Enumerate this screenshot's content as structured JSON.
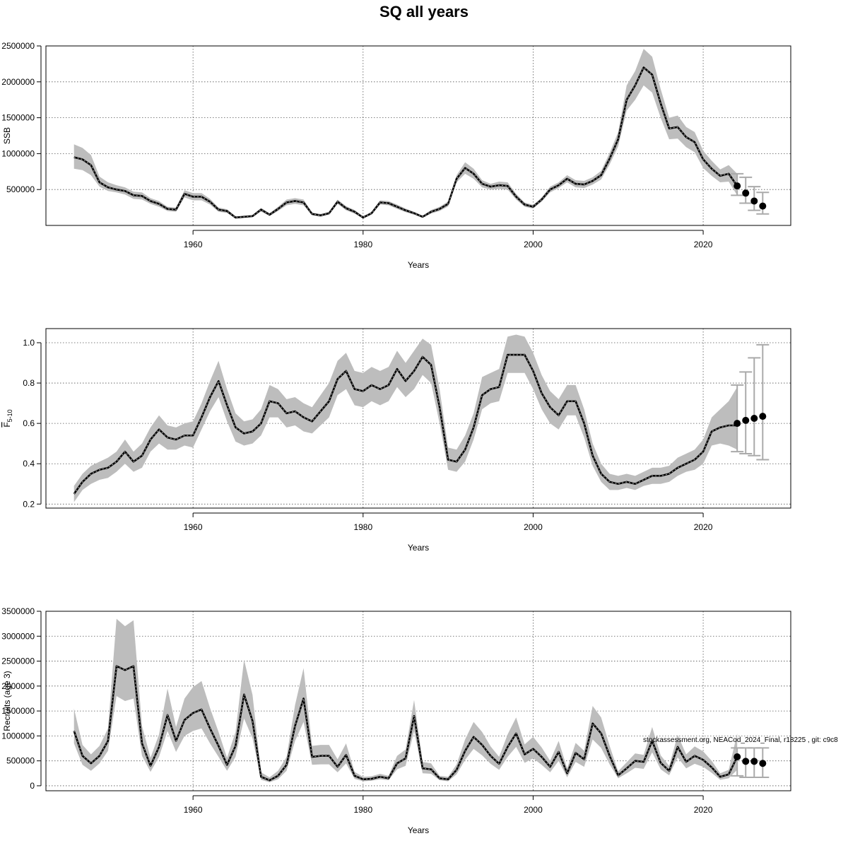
{
  "figure": {
    "title": "SQ all years",
    "footnote": "stockassessment.org, NEACod_2024_Final, r18225 , git: c9c8"
  },
  "chart_data": [
    {
      "type": "line",
      "id": "ssb",
      "xlabel": "Years",
      "ylabel": "SSB",
      "ylabel_sub": "",
      "xlim": [
        1942.7,
        2030.3
      ],
      "ylim": [
        0,
        2500000
      ],
      "xticks": [
        1960,
        1980,
        2000,
        2020
      ],
      "yticks": [
        500000,
        1000000,
        1500000,
        2000000,
        2500000
      ],
      "grid": true,
      "x": [
        1946,
        1947,
        1948,
        1949,
        1950,
        1951,
        1952,
        1953,
        1954,
        1955,
        1956,
        1957,
        1958,
        1959,
        1960,
        1961,
        1962,
        1963,
        1964,
        1965,
        1966,
        1967,
        1968,
        1969,
        1970,
        1971,
        1972,
        1973,
        1974,
        1975,
        1976,
        1977,
        1978,
        1979,
        1980,
        1981,
        1982,
        1983,
        1984,
        1985,
        1986,
        1987,
        1988,
        1989,
        1990,
        1991,
        1992,
        1993,
        1994,
        1995,
        1996,
        1997,
        1998,
        1999,
        2000,
        2001,
        2002,
        2003,
        2004,
        2005,
        2006,
        2007,
        2008,
        2009,
        2010,
        2011,
        2012,
        2013,
        2014,
        2015,
        2016,
        2017,
        2018,
        2019,
        2020,
        2021,
        2022,
        2023,
        2024
      ],
      "estimate": [
        950000,
        920000,
        840000,
        600000,
        530000,
        500000,
        480000,
        420000,
        410000,
        340000,
        300000,
        230000,
        220000,
        440000,
        400000,
        400000,
        330000,
        220000,
        200000,
        110000,
        120000,
        130000,
        220000,
        150000,
        230000,
        320000,
        340000,
        320000,
        160000,
        140000,
        170000,
        330000,
        240000,
        190000,
        110000,
        170000,
        320000,
        310000,
        260000,
        210000,
        170000,
        120000,
        190000,
        230000,
        300000,
        650000,
        800000,
        720000,
        580000,
        540000,
        560000,
        550000,
        400000,
        290000,
        260000,
        360000,
        500000,
        560000,
        650000,
        580000,
        570000,
        620000,
        700000,
        930000,
        1200000,
        1750000,
        1950000,
        2200000,
        2100000,
        1700000,
        1350000,
        1370000,
        1230000,
        1160000,
        920000,
        790000,
        690000,
        720000,
        550000
      ],
      "lower": [
        790000,
        770000,
        700000,
        540000,
        480000,
        460000,
        430000,
        370000,
        360000,
        300000,
        260000,
        200000,
        190000,
        390000,
        350000,
        350000,
        290000,
        190000,
        175000,
        95000,
        105000,
        115000,
        195000,
        130000,
        200000,
        280000,
        300000,
        280000,
        140000,
        120000,
        150000,
        300000,
        210000,
        165000,
        95000,
        150000,
        290000,
        280000,
        230000,
        185000,
        150000,
        105000,
        165000,
        200000,
        265000,
        600000,
        720000,
        650000,
        530000,
        500000,
        510000,
        500000,
        360000,
        260000,
        235000,
        330000,
        460000,
        520000,
        600000,
        530000,
        520000,
        570000,
        640000,
        850000,
        1100000,
        1600000,
        1750000,
        1950000,
        1850000,
        1500000,
        1200000,
        1210000,
        1090000,
        1020000,
        800000,
        690000,
        600000,
        610000,
        420000
      ],
      "upper": [
        1130000,
        1080000,
        980000,
        680000,
        600000,
        560000,
        530000,
        470000,
        460000,
        380000,
        340000,
        260000,
        250000,
        490000,
        450000,
        450000,
        370000,
        250000,
        225000,
        125000,
        135000,
        145000,
        245000,
        170000,
        260000,
        360000,
        380000,
        360000,
        180000,
        160000,
        190000,
        360000,
        270000,
        215000,
        125000,
        190000,
        350000,
        340000,
        290000,
        235000,
        190000,
        135000,
        215000,
        260000,
        335000,
        700000,
        880000,
        790000,
        630000,
        580000,
        610000,
        600000,
        440000,
        320000,
        285000,
        390000,
        540000,
        600000,
        700000,
        630000,
        620000,
        670000,
        760000,
        1010000,
        1300000,
        1950000,
        2150000,
        2460000,
        2350000,
        1900000,
        1500000,
        1530000,
        1370000,
        1300000,
        1040000,
        900000,
        780000,
        840000,
        720000
      ],
      "projection": {
        "x": [
          2024,
          2025,
          2026,
          2027
        ],
        "y": [
          550000,
          450000,
          340000,
          270000
        ],
        "lower": [
          420000,
          310000,
          210000,
          160000
        ],
        "upper": [
          720000,
          670000,
          540000,
          460000
        ]
      }
    },
    {
      "type": "line",
      "id": "fbar",
      "xlabel": "Years",
      "ylabel": "F",
      "ylabel_sub": "5-10",
      "xlim": [
        1942.7,
        2030.3
      ],
      "ylim": [
        0.18,
        1.07
      ],
      "xticks": [
        1960,
        1980,
        2000,
        2020
      ],
      "yticks": [
        0.2,
        0.4,
        0.6,
        0.8,
        1.0
      ],
      "ytick_labels": [
        "0.2",
        "0.4",
        "0.6",
        "0.8",
        "1.0"
      ],
      "grid": true,
      "x": [
        1946,
        1947,
        1948,
        1949,
        1950,
        1951,
        1952,
        1953,
        1954,
        1955,
        1956,
        1957,
        1958,
        1959,
        1960,
        1961,
        1962,
        1963,
        1964,
        1965,
        1966,
        1967,
        1968,
        1969,
        1970,
        1971,
        1972,
        1973,
        1974,
        1975,
        1976,
        1977,
        1978,
        1979,
        1980,
        1981,
        1982,
        1983,
        1984,
        1985,
        1986,
        1987,
        1988,
        1989,
        1990,
        1991,
        1992,
        1993,
        1994,
        1995,
        1996,
        1997,
        1998,
        1999,
        2000,
        2001,
        2002,
        2003,
        2004,
        2005,
        2006,
        2007,
        2008,
        2009,
        2010,
        2011,
        2012,
        2013,
        2014,
        2015,
        2016,
        2017,
        2018,
        2019,
        2020,
        2021,
        2022,
        2023,
        2024
      ],
      "estimate": [
        0.25,
        0.31,
        0.35,
        0.37,
        0.38,
        0.41,
        0.46,
        0.41,
        0.44,
        0.52,
        0.57,
        0.53,
        0.52,
        0.54,
        0.54,
        0.63,
        0.73,
        0.81,
        0.69,
        0.58,
        0.55,
        0.56,
        0.6,
        0.71,
        0.7,
        0.65,
        0.66,
        0.63,
        0.61,
        0.66,
        0.71,
        0.82,
        0.86,
        0.77,
        0.76,
        0.79,
        0.77,
        0.79,
        0.87,
        0.81,
        0.86,
        0.93,
        0.89,
        0.68,
        0.42,
        0.41,
        0.47,
        0.58,
        0.74,
        0.77,
        0.78,
        0.94,
        0.94,
        0.94,
        0.86,
        0.75,
        0.68,
        0.64,
        0.71,
        0.71,
        0.6,
        0.44,
        0.35,
        0.31,
        0.3,
        0.31,
        0.3,
        0.32,
        0.34,
        0.34,
        0.35,
        0.38,
        0.4,
        0.42,
        0.46,
        0.56,
        0.58,
        0.59,
        0.59
      ],
      "lower": [
        0.21,
        0.27,
        0.3,
        0.32,
        0.33,
        0.36,
        0.4,
        0.36,
        0.38,
        0.46,
        0.5,
        0.47,
        0.47,
        0.49,
        0.48,
        0.57,
        0.66,
        0.73,
        0.61,
        0.51,
        0.49,
        0.5,
        0.54,
        0.63,
        0.63,
        0.58,
        0.59,
        0.56,
        0.55,
        0.59,
        0.63,
        0.74,
        0.77,
        0.69,
        0.68,
        0.71,
        0.69,
        0.71,
        0.78,
        0.73,
        0.77,
        0.84,
        0.8,
        0.6,
        0.37,
        0.36,
        0.41,
        0.52,
        0.67,
        0.7,
        0.71,
        0.85,
        0.85,
        0.85,
        0.77,
        0.67,
        0.6,
        0.57,
        0.64,
        0.64,
        0.53,
        0.39,
        0.31,
        0.27,
        0.27,
        0.28,
        0.27,
        0.29,
        0.3,
        0.3,
        0.31,
        0.34,
        0.36,
        0.37,
        0.4,
        0.49,
        0.5,
        0.49,
        0.47
      ],
      "upper": [
        0.29,
        0.35,
        0.39,
        0.41,
        0.43,
        0.46,
        0.52,
        0.46,
        0.5,
        0.58,
        0.64,
        0.59,
        0.58,
        0.6,
        0.61,
        0.7,
        0.81,
        0.91,
        0.77,
        0.65,
        0.61,
        0.62,
        0.67,
        0.79,
        0.77,
        0.72,
        0.73,
        0.7,
        0.68,
        0.74,
        0.8,
        0.91,
        0.95,
        0.86,
        0.85,
        0.88,
        0.86,
        0.88,
        0.96,
        0.9,
        0.96,
        1.02,
        0.99,
        0.77,
        0.48,
        0.47,
        0.54,
        0.65,
        0.83,
        0.85,
        0.87,
        1.03,
        1.04,
        1.03,
        0.95,
        0.84,
        0.76,
        0.72,
        0.79,
        0.79,
        0.67,
        0.5,
        0.4,
        0.35,
        0.34,
        0.35,
        0.34,
        0.36,
        0.38,
        0.38,
        0.39,
        0.43,
        0.45,
        0.47,
        0.52,
        0.63,
        0.67,
        0.71,
        0.78
      ],
      "projection": {
        "x": [
          2024,
          2025,
          2026,
          2027
        ],
        "y": [
          0.6,
          0.615,
          0.625,
          0.635
        ],
        "lower": [
          0.46,
          0.45,
          0.44,
          0.42
        ],
        "upper": [
          0.79,
          0.855,
          0.925,
          0.99
        ]
      }
    },
    {
      "type": "line",
      "id": "recruits",
      "xlabel": "Years",
      "ylabel": "Recruits (age 3)",
      "ylabel_sub": "",
      "xlim": [
        1942.7,
        2030.3
      ],
      "ylim": [
        -100000,
        3500000
      ],
      "xticks": [
        1960,
        1980,
        2000,
        2020
      ],
      "yticks": [
        0,
        500000,
        1000000,
        1500000,
        2000000,
        2500000,
        3000000,
        3500000
      ],
      "grid": true,
      "x": [
        1946,
        1947,
        1948,
        1949,
        1950,
        1951,
        1952,
        1953,
        1954,
        1955,
        1956,
        1957,
        1958,
        1959,
        1960,
        1961,
        1962,
        1963,
        1964,
        1965,
        1966,
        1967,
        1968,
        1969,
        1970,
        1971,
        1972,
        1973,
        1974,
        1975,
        1976,
        1977,
        1978,
        1979,
        1980,
        1981,
        1982,
        1983,
        1984,
        1985,
        1986,
        1987,
        1988,
        1989,
        1990,
        1991,
        1992,
        1993,
        1994,
        1995,
        1996,
        1997,
        1998,
        1999,
        2000,
        2001,
        2002,
        2003,
        2004,
        2005,
        2006,
        2007,
        2008,
        2009,
        2010,
        2011,
        2012,
        2013,
        2014,
        2015,
        2016,
        2017,
        2018,
        2019,
        2020,
        2021,
        2022,
        2023,
        2024
      ],
      "estimate": [
        1100000,
        600000,
        450000,
        600000,
        900000,
        2400000,
        2320000,
        2400000,
        850000,
        400000,
        780000,
        1420000,
        900000,
        1320000,
        1460000,
        1530000,
        1150000,
        800000,
        420000,
        800000,
        1830000,
        1300000,
        180000,
        110000,
        200000,
        420000,
        1200000,
        1750000,
        580000,
        600000,
        600000,
        380000,
        620000,
        200000,
        130000,
        140000,
        180000,
        150000,
        450000,
        550000,
        1400000,
        350000,
        330000,
        150000,
        130000,
        320000,
        700000,
        980000,
        820000,
        600000,
        440000,
        780000,
        1050000,
        630000,
        740000,
        580000,
        380000,
        680000,
        250000,
        660000,
        530000,
        1250000,
        1050000,
        600000,
        210000,
        350000,
        500000,
        480000,
        900000,
        460000,
        300000,
        780000,
        480000,
        600000,
        520000,
        370000,
        180000,
        230000,
        580000
      ],
      "lower": [
        850000,
        420000,
        300000,
        450000,
        700000,
        1800000,
        1700000,
        1750000,
        600000,
        280000,
        580000,
        1100000,
        680000,
        1000000,
        1100000,
        1150000,
        850000,
        580000,
        300000,
        580000,
        1350000,
        950000,
        120000,
        70000,
        130000,
        300000,
        900000,
        1280000,
        420000,
        430000,
        430000,
        270000,
        450000,
        140000,
        90000,
        100000,
        130000,
        110000,
        330000,
        400000,
        1100000,
        250000,
        240000,
        110000,
        90000,
        230000,
        520000,
        740000,
        610000,
        440000,
        320000,
        580000,
        780000,
        460000,
        550000,
        420000,
        270000,
        500000,
        170000,
        480000,
        380000,
        930000,
        760000,
        430000,
        150000,
        250000,
        360000,
        340000,
        670000,
        330000,
        210000,
        570000,
        350000,
        440000,
        380000,
        260000,
        120000,
        150000,
        320000
      ],
      "upper": [
        1550000,
        820000,
        630000,
        800000,
        1150000,
        3350000,
        3200000,
        3320000,
        1200000,
        560000,
        1030000,
        1950000,
        1180000,
        1750000,
        1980000,
        2100000,
        1560000,
        1080000,
        560000,
        1080000,
        2530000,
        1820000,
        270000,
        170000,
        300000,
        580000,
        1620000,
        2360000,
        800000,
        820000,
        820000,
        530000,
        850000,
        280000,
        180000,
        190000,
        240000,
        200000,
        600000,
        730000,
        1720000,
        480000,
        450000,
        200000,
        180000,
        430000,
        930000,
        1280000,
        1080000,
        790000,
        580000,
        1030000,
        1370000,
        830000,
        980000,
        770000,
        500000,
        900000,
        350000,
        860000,
        700000,
        1600000,
        1370000,
        800000,
        290000,
        470000,
        650000,
        620000,
        1180000,
        610000,
        400000,
        1020000,
        630000,
        790000,
        690000,
        500000,
        250000,
        320000,
        1050000
      ],
      "projection": {
        "x": [
          2024,
          2025,
          2026,
          2027
        ],
        "y": [
          580000,
          490000,
          490000,
          450000
        ],
        "lower": [
          200000,
          170000,
          170000,
          170000
        ],
        "upper": [
          760000,
          760000,
          760000,
          760000
        ]
      }
    }
  ]
}
